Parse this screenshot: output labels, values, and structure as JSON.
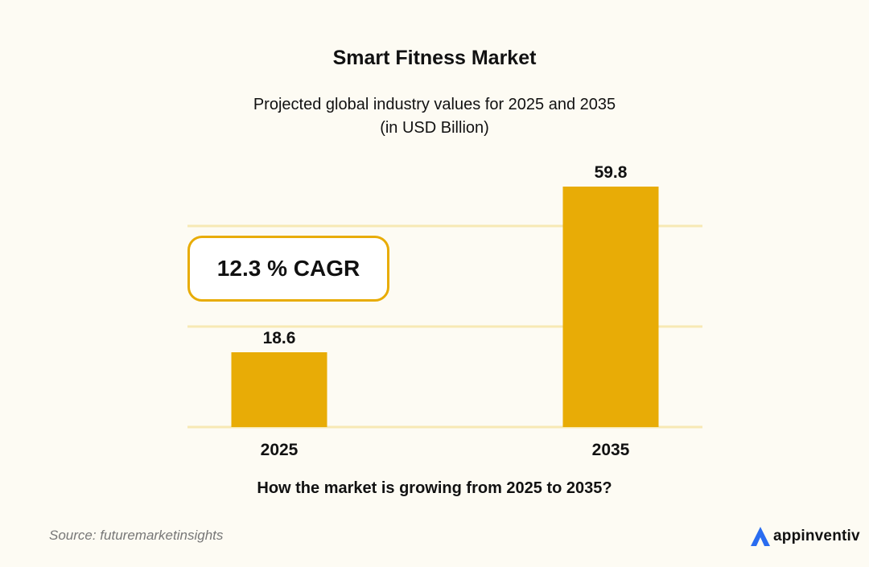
{
  "chart_data": {
    "type": "bar",
    "title": "Smart Fitness Market",
    "subtitle_lines": [
      "Projected global industry values for 2025 and 2035",
      "(in USD Billion)"
    ],
    "categories": [
      "2025",
      "2035"
    ],
    "values": [
      18.6,
      59.8
    ],
    "data_labels": [
      "18.6",
      "59.8"
    ],
    "xlabel": "",
    "ylabel": "",
    "ylim": [
      0,
      64
    ],
    "gridlines": [
      0,
      25,
      50
    ],
    "grid": true,
    "bar_color": "#e8ac06",
    "grid_color": "#f7e9b4",
    "annotation": "12.3 % CAGR",
    "question": "How the market is growing from 2025 to 2035?"
  },
  "footer": {
    "source": "Source: futuremarketinsights",
    "brand": "appinventiv"
  },
  "colors": {
    "background": "#fdfbf3",
    "accent": "#e8ac06",
    "brand_blue": "#2a6cf0"
  }
}
